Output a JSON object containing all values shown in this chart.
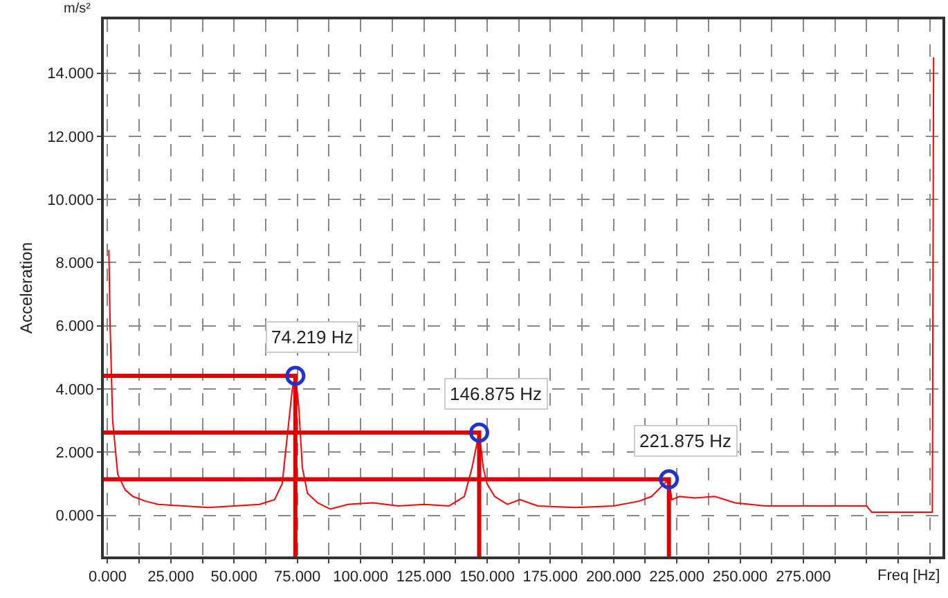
{
  "chart_data": {
    "type": "line",
    "xlabel": "Freq [Hz]",
    "ylabel": "Acceleration",
    "annotations": [
      {
        "text": "74.219 Hz",
        "x": 74.219,
        "y": 4.42
      },
      {
        "text": "146.875 Hz",
        "x": 146.875,
        "y": 2.62
      },
      {
        "text": "221.875 Hz",
        "x": 221.875,
        "y": 1.14
      },
      "m/s²"
    ],
    "x": [
      0.5,
      1,
      2,
      4,
      7,
      10,
      15,
      20,
      30,
      40,
      50,
      60,
      66,
      69,
      71,
      73,
      74.219,
      75.5,
      77,
      79,
      83,
      88,
      95,
      105,
      115,
      125,
      135,
      141,
      144,
      146.875,
      148.5,
      150,
      153,
      158,
      163,
      170,
      185,
      200,
      210,
      215,
      220,
      221.875,
      223,
      226,
      232,
      240,
      248,
      260,
      280,
      300,
      302,
      320,
      326,
      326.5
    ],
    "series": [
      {
        "color": "#ff0000",
        "values": [
          8.4,
          6,
          3,
          1.3,
          0.8,
          0.6,
          0.45,
          0.35,
          0.3,
          0.25,
          0.3,
          0.35,
          0.5,
          1.0,
          2.5,
          4.0,
          4.42,
          3.5,
          1.5,
          0.7,
          0.4,
          0.2,
          0.35,
          0.4,
          0.3,
          0.35,
          0.3,
          0.6,
          1.5,
          2.62,
          1.5,
          1.0,
          0.6,
          0.35,
          0.5,
          0.3,
          0.25,
          0.3,
          0.45,
          0.6,
          1.0,
          1.14,
          0.5,
          0.6,
          0.55,
          0.6,
          0.4,
          0.3,
          0.3,
          0.3,
          0.1,
          0.1,
          0.1,
          14.5
        ]
      },
      {
        "type": "line",
        "color": "#e00000",
        "x": [
          -1.5,
          74.219,
          74.219
        ],
        "values": [
          4.42,
          4.42,
          -1.3
        ]
      },
      {
        "type": "line",
        "color": "#e00000",
        "x": [
          -1.5,
          146.875,
          146.875
        ],
        "values": [
          2.62,
          2.62,
          -1.3
        ]
      },
      {
        "type": "line",
        "color": "#e00000",
        "x": [
          -1.5,
          221.875,
          221.875
        ],
        "values": [
          1.14,
          1.14,
          -1.3
        ]
      }
    ],
    "xlim": [
      -1.5,
      330
    ],
    "xticks": [
      {
        "value": 0,
        "label": "0.000"
      },
      {
        "value": 12.5,
        "label": null
      },
      {
        "value": 25,
        "label": "25.000"
      },
      {
        "value": 37.5,
        "label": null
      },
      {
        "value": 50,
        "label": "50.000"
      },
      {
        "value": 62.5,
        "label": null
      },
      {
        "value": 75,
        "label": "75.000"
      },
      {
        "value": 87.5,
        "label": null
      },
      {
        "value": 100,
        "label": "100.000"
      },
      {
        "value": 112.5,
        "label": null
      },
      {
        "value": 125,
        "label": "125.000"
      },
      {
        "value": 137.5,
        "label": null
      },
      {
        "value": 150,
        "label": "150.000"
      },
      {
        "value": 162.5,
        "label": null
      },
      {
        "value": 175,
        "label": "175.000"
      },
      {
        "value": 187.5,
        "label": null
      },
      {
        "value": 200,
        "label": "200.000"
      },
      {
        "value": 212.5,
        "label": null
      },
      {
        "value": 225,
        "label": "225.000"
      },
      {
        "value": 237.5,
        "label": null
      },
      {
        "value": 250,
        "label": "250.000"
      },
      {
        "value": 262.5,
        "label": null
      },
      {
        "value": 275,
        "label": "275.000"
      },
      {
        "value": 287.5,
        "label": null
      },
      {
        "value": 300,
        "label": null
      },
      {
        "value": 312.5,
        "label": null
      },
      {
        "value": 325,
        "label": null
      }
    ],
    "ylim": [
      -1.3,
      15.7
    ],
    "yticks": [
      {
        "value": 0,
        "label": "0.000"
      },
      {
        "value": 2,
        "label": "2.000"
      },
      {
        "value": 4,
        "label": "4.000"
      },
      {
        "value": 6,
        "label": "6.000"
      },
      {
        "value": 8,
        "label": "8.000"
      },
      {
        "value": 10,
        "label": "10.000"
      },
      {
        "value": 12,
        "label": "12.000"
      },
      {
        "value": 14,
        "label": "14.000"
      }
    ],
    "grid": true,
    "marker": "none",
    "line_style": "solid"
  }
}
